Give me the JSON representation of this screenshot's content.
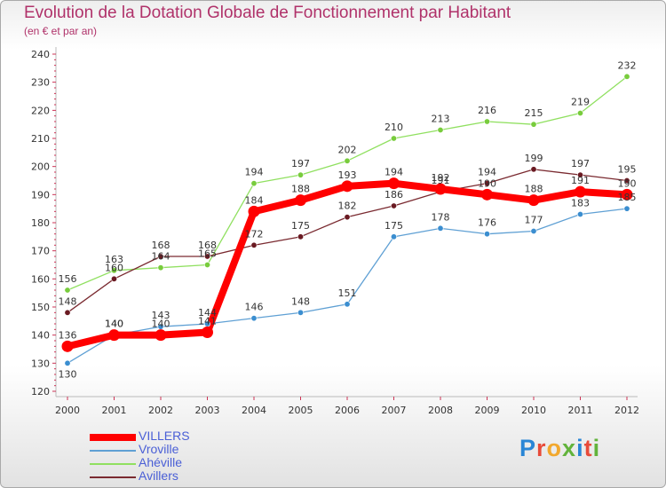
{
  "chart_title": "Evolution de la Dotation Globale de Fonctionnement par Habitant",
  "chart_subtitle": "(en € et par an)",
  "logo": {
    "text": "Proxiti",
    "colors": [
      "#2a86d6",
      "#e84b3a",
      "#f2a82d",
      "#62b33b",
      "#2a86d6",
      "#e84b3a",
      "#62b33b"
    ]
  },
  "chart_data": {
    "type": "line",
    "title": "Evolution de la Dotation Globale de Fonctionnement par Habitant",
    "subtitle": "(en € et par an)",
    "xlabel": "",
    "ylabel": "",
    "categories": [
      "2000",
      "2001",
      "2002",
      "2003",
      "2004",
      "2005",
      "2006",
      "2007",
      "2008",
      "2009",
      "2010",
      "2011",
      "2012"
    ],
    "ylim": [
      120,
      240
    ],
    "yticks": [
      120,
      130,
      140,
      150,
      160,
      170,
      180,
      190,
      200,
      210,
      220,
      230,
      240
    ],
    "grid": false,
    "legend_position": "bottom-left",
    "series": [
      {
        "name": "VILLERS",
        "color": "#ff0000",
        "emphasis": true,
        "values": [
          136,
          140,
          140,
          141,
          184,
          188,
          193,
          194,
          192,
          190,
          188,
          191,
          190
        ]
      },
      {
        "name": "Vroville",
        "color": "#5fa0d4",
        "marker": "#3b8ed0",
        "values": [
          130,
          140,
          143,
          144,
          146,
          148,
          151,
          175,
          178,
          176,
          177,
          183,
          185
        ]
      },
      {
        "name": "Ahéville",
        "color": "#90e060",
        "marker": "#78cc3c",
        "values": [
          156,
          163,
          164,
          165,
          194,
          197,
          202,
          210,
          213,
          216,
          215,
          219,
          232
        ]
      },
      {
        "name": "Avillers",
        "color": "#7a2a30",
        "marker": "#6a1a22",
        "values": [
          148,
          160,
          168,
          168,
          172,
          175,
          182,
          186,
          191,
          194,
          199,
          197,
          195
        ]
      }
    ]
  }
}
